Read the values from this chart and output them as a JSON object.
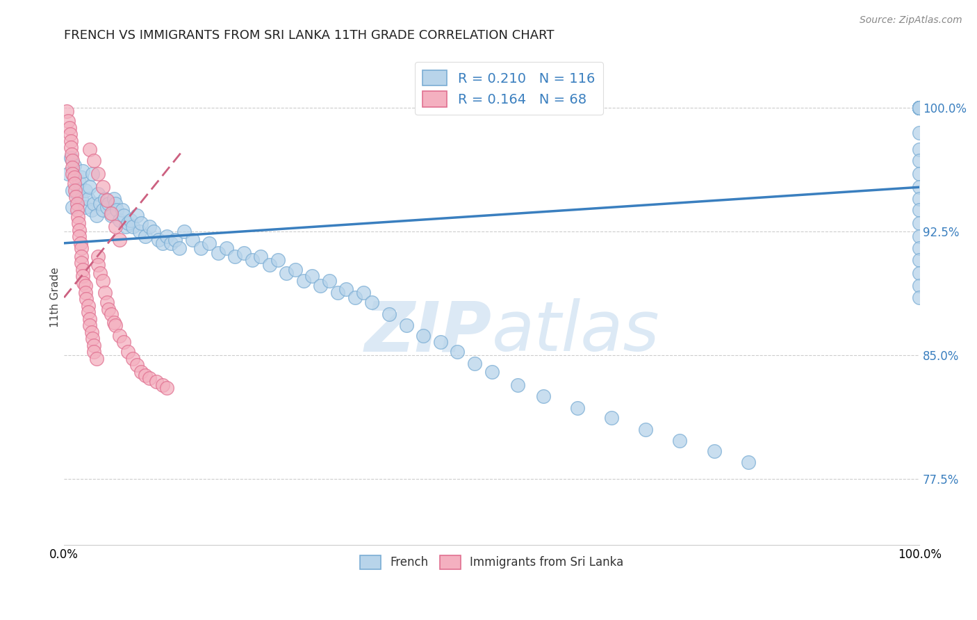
{
  "title": "FRENCH VS IMMIGRANTS FROM SRI LANKA 11TH GRADE CORRELATION CHART",
  "source_text": "Source: ZipAtlas.com",
  "ylabel": "11th Grade",
  "french_R": 0.21,
  "french_N": 116,
  "sri_lanka_R": 0.164,
  "sri_lanka_N": 68,
  "french_color": "#b8d4ea",
  "french_edge_color": "#7aadd4",
  "sri_lanka_color": "#f4b0c0",
  "sri_lanka_edge_color": "#e07090",
  "trend_line_color": "#3a7fbf",
  "trend_line_pink": "#cc6080",
  "watermark_color": "#dce9f5",
  "y_tick_positions": [
    0.775,
    0.85,
    0.925,
    1.0
  ],
  "y_tick_labels": [
    "77.5%",
    "85.0%",
    "92.5%",
    "100.0%"
  ],
  "xlim": [
    0.0,
    1.0
  ],
  "ylim": [
    0.735,
    1.035
  ],
  "french_trend_x": [
    0.0,
    1.0
  ],
  "french_trend_y": [
    0.918,
    0.952
  ],
  "sri_trend_x": [
    0.0,
    0.14
  ],
  "sri_trend_y": [
    0.885,
    0.975
  ],
  "french_x_data": [
    0.005,
    0.008,
    0.01,
    0.01,
    0.012,
    0.015,
    0.018,
    0.02,
    0.02,
    0.022,
    0.025,
    0.025,
    0.028,
    0.03,
    0.032,
    0.033,
    0.035,
    0.038,
    0.04,
    0.042,
    0.045,
    0.048,
    0.05,
    0.052,
    0.055,
    0.058,
    0.06,
    0.062,
    0.065,
    0.068,
    0.07,
    0.072,
    0.075,
    0.078,
    0.08,
    0.085,
    0.088,
    0.09,
    0.095,
    0.1,
    0.105,
    0.11,
    0.115,
    0.12,
    0.125,
    0.13,
    0.135,
    0.14,
    0.15,
    0.16,
    0.17,
    0.18,
    0.19,
    0.2,
    0.21,
    0.22,
    0.23,
    0.24,
    0.25,
    0.26,
    0.27,
    0.28,
    0.29,
    0.3,
    0.31,
    0.32,
    0.33,
    0.34,
    0.35,
    0.36,
    0.38,
    0.4,
    0.42,
    0.44,
    0.46,
    0.48,
    0.5,
    0.53,
    0.56,
    0.6,
    0.64,
    0.68,
    0.72,
    0.76,
    0.8,
    1.0,
    1.0,
    1.0,
    1.0,
    1.0,
    1.0,
    1.0,
    1.0,
    1.0,
    1.0,
    1.0,
    1.0,
    1.0,
    1.0,
    1.0,
    1.0,
    1.0,
    1.0,
    1.0,
    1.0,
    1.0,
    1.0,
    1.0,
    1.0,
    1.0,
    1.0,
    1.0,
    1.0,
    1.0,
    1.0,
    1.0,
    1.0
  ],
  "french_y_data": [
    0.96,
    0.97,
    0.95,
    0.94,
    0.965,
    0.948,
    0.955,
    0.958,
    0.945,
    0.962,
    0.95,
    0.94,
    0.945,
    0.952,
    0.938,
    0.96,
    0.942,
    0.935,
    0.948,
    0.942,
    0.938,
    0.945,
    0.94,
    0.942,
    0.935,
    0.945,
    0.942,
    0.938,
    0.932,
    0.938,
    0.935,
    0.928,
    0.93,
    0.932,
    0.928,
    0.935,
    0.925,
    0.93,
    0.922,
    0.928,
    0.925,
    0.92,
    0.918,
    0.922,
    0.918,
    0.92,
    0.915,
    0.925,
    0.92,
    0.915,
    0.918,
    0.912,
    0.915,
    0.91,
    0.912,
    0.908,
    0.91,
    0.905,
    0.908,
    0.9,
    0.902,
    0.895,
    0.898,
    0.892,
    0.895,
    0.888,
    0.89,
    0.885,
    0.888,
    0.882,
    0.875,
    0.868,
    0.862,
    0.858,
    0.852,
    0.845,
    0.84,
    0.832,
    0.825,
    0.818,
    0.812,
    0.805,
    0.798,
    0.792,
    0.785,
    1.0,
    1.0,
    1.0,
    1.0,
    1.0,
    1.0,
    1.0,
    1.0,
    1.0,
    1.0,
    1.0,
    1.0,
    1.0,
    1.0,
    1.0,
    1.0,
    1.0,
    1.0,
    0.985,
    0.975,
    0.968,
    0.96,
    0.952,
    0.945,
    0.938,
    0.93,
    0.922,
    0.915,
    0.908,
    0.9,
    0.892,
    0.885
  ],
  "sri_x_data": [
    0.003,
    0.005,
    0.006,
    0.007,
    0.008,
    0.008,
    0.009,
    0.01,
    0.01,
    0.01,
    0.012,
    0.012,
    0.013,
    0.014,
    0.015,
    0.015,
    0.016,
    0.017,
    0.018,
    0.018,
    0.019,
    0.02,
    0.02,
    0.02,
    0.022,
    0.022,
    0.023,
    0.025,
    0.025,
    0.026,
    0.028,
    0.028,
    0.03,
    0.03,
    0.032,
    0.033,
    0.035,
    0.035,
    0.038,
    0.04,
    0.04,
    0.042,
    0.045,
    0.048,
    0.05,
    0.052,
    0.055,
    0.058,
    0.06,
    0.065,
    0.07,
    0.075,
    0.08,
    0.085,
    0.09,
    0.095,
    0.1,
    0.108,
    0.115,
    0.12,
    0.03,
    0.035,
    0.04,
    0.045,
    0.05,
    0.055,
    0.06,
    0.065
  ],
  "sri_y_data": [
    0.998,
    0.992,
    0.988,
    0.984,
    0.98,
    0.976,
    0.972,
    0.968,
    0.964,
    0.96,
    0.958,
    0.954,
    0.95,
    0.946,
    0.942,
    0.938,
    0.934,
    0.93,
    0.926,
    0.922,
    0.918,
    0.915,
    0.91,
    0.906,
    0.902,
    0.898,
    0.894,
    0.892,
    0.888,
    0.884,
    0.88,
    0.876,
    0.872,
    0.868,
    0.864,
    0.86,
    0.856,
    0.852,
    0.848,
    0.91,
    0.905,
    0.9,
    0.895,
    0.888,
    0.882,
    0.878,
    0.875,
    0.87,
    0.868,
    0.862,
    0.858,
    0.852,
    0.848,
    0.844,
    0.84,
    0.838,
    0.836,
    0.834,
    0.832,
    0.83,
    0.975,
    0.968,
    0.96,
    0.952,
    0.944,
    0.936,
    0.928,
    0.92
  ]
}
